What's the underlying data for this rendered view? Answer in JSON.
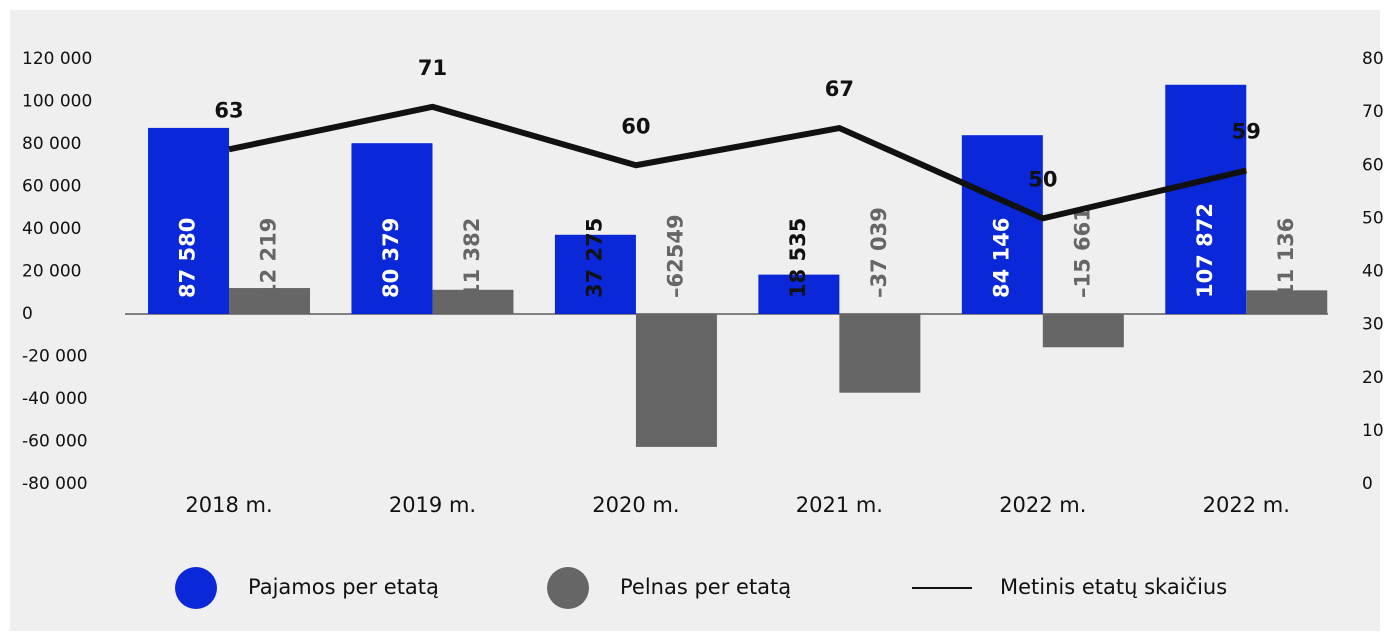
{
  "chart_data": {
    "type": "bar-line",
    "categories": [
      "2018 m.",
      "2019 m.",
      "2020 m.",
      "2021 m.",
      "2022 m.",
      "2022 m."
    ],
    "series": [
      {
        "name": "Pajamos per etatą",
        "color": "#0a28d8",
        "type": "bar",
        "values": [
          87580,
          80379,
          37275,
          18535,
          84146,
          107872
        ],
        "value_labels": [
          "87 580",
          "80 379",
          "37 275",
          "18 535",
          "84 146",
          "107 872"
        ]
      },
      {
        "name": "Pelnas per etatą",
        "color": "#666666",
        "type": "bar",
        "values": [
          12219,
          11382,
          -62549,
          -37039,
          -15661,
          11136
        ],
        "value_labels": [
          "12 219",
          "11 382",
          "–62549",
          "–37 039",
          "–15 661",
          "11 136"
        ]
      },
      {
        "name": "Metinis etatų skaičius",
        "color": "#111111",
        "type": "line",
        "axis": "y2",
        "values": [
          63,
          71,
          60,
          67,
          50,
          59
        ]
      }
    ],
    "ylim": [
      -80000,
      120000
    ],
    "yticks": [
      {
        "value": 120000,
        "label": "120 000"
      },
      {
        "value": 100000,
        "label": "100 000"
      },
      {
        "value": 80000,
        "label": "80 000"
      },
      {
        "value": 60000,
        "label": "60 000"
      },
      {
        "value": 40000,
        "label": "40 000"
      },
      {
        "value": 20000,
        "label": "20 000"
      },
      0,
      {
        "value": -20000,
        "label": "-20 000"
      },
      {
        "value": -40000,
        "label": "-40 000"
      },
      {
        "value": -60000,
        "label": "-60 000"
      },
      {
        "value": -80000,
        "label": "-80 000"
      }
    ],
    "y2lim": [
      0,
      80
    ],
    "y2ticks": [
      0,
      10,
      20,
      30,
      40,
      50,
      60,
      70,
      80
    ],
    "grid": false
  }
}
